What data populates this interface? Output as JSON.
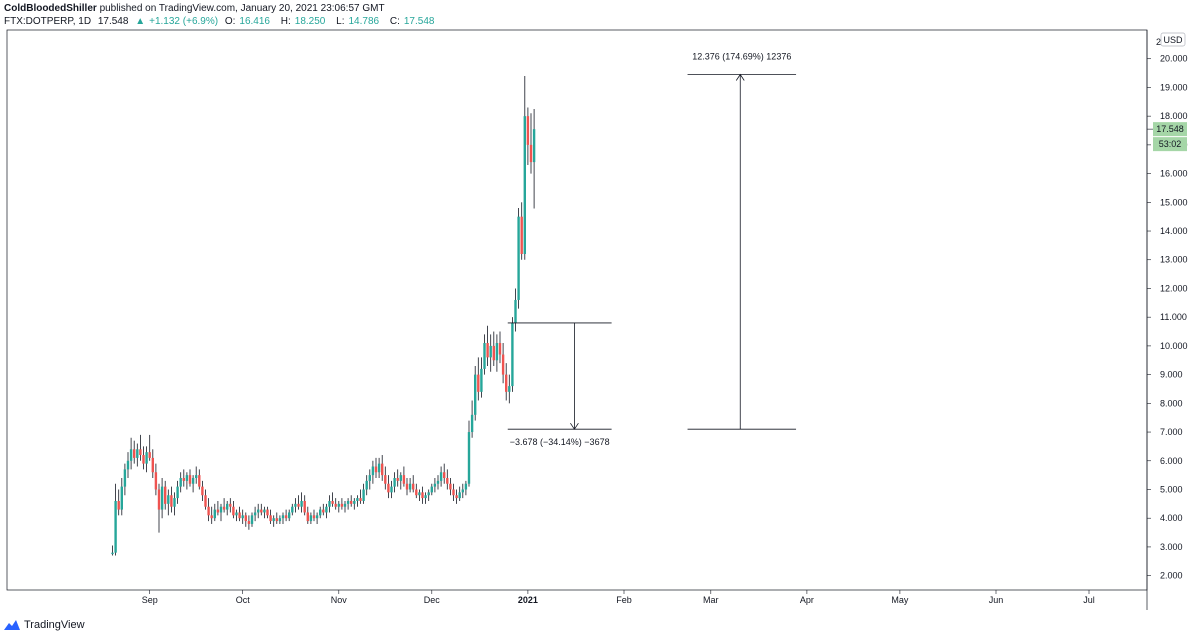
{
  "header": {
    "author": "ColdBloodedShiller",
    "published": "published on TradingView.com, January 20, 2021 23:06:57 GMT",
    "symbol": "FTX:DOTPERP, 1D",
    "last": "17.548",
    "change_arrow": "▲",
    "change": "+1.132 (+6.9%)",
    "o_label": "O:",
    "o_val": "16.416",
    "h_label": "H:",
    "h_val": "18.250",
    "l_label": "L:",
    "l_val": "14.786",
    "c_label": "C:",
    "c_val": "17.548"
  },
  "footer": {
    "brand": "TradingView",
    "logo_icon": "tradingview-logo-icon"
  },
  "chart_data": {
    "type": "candlestick",
    "currency_badge": "USD",
    "price_tag": "17.548",
    "countdown_tag": "53:02",
    "colors": {
      "up": "#26a69a",
      "down": "#ef5350",
      "line": "#131722",
      "tag": "#a5d6a7"
    },
    "y_ticks": [
      "20.000",
      "19.000",
      "18.000",
      "17.000",
      "16.000",
      "15.000",
      "14.000",
      "13.000",
      "12.000",
      "11.000",
      "10.000",
      "9.000",
      "8.000",
      "7.000",
      "6.000",
      "5.000",
      "4.000",
      "3.000",
      "2.000"
    ],
    "y_top_label": "2",
    "ylim": [
      1.5,
      21
    ],
    "x_ticks": [
      "Sep",
      "Oct",
      "Nov",
      "Dec",
      "2021",
      "Feb",
      "Mar",
      "Apr",
      "May",
      "Jun",
      "Jul"
    ],
    "x_tick_days": [
      12,
      42,
      73,
      103,
      134,
      165,
      193,
      224,
      254,
      285,
      315
    ],
    "candles": [
      {
        "d": 0,
        "o": 2.75,
        "h": 3.05,
        "l": 2.7,
        "c": 2.8
      },
      {
        "d": 1,
        "o": 2.8,
        "h": 5.2,
        "l": 2.7,
        "c": 4.6
      },
      {
        "d": 2,
        "o": 4.6,
        "h": 5.0,
        "l": 4.1,
        "c": 4.3
      },
      {
        "d": 3,
        "o": 4.3,
        "h": 5.4,
        "l": 4.1,
        "c": 5.1
      },
      {
        "d": 4,
        "o": 5.1,
        "h": 5.9,
        "l": 4.8,
        "c": 5.7
      },
      {
        "d": 5,
        "o": 5.7,
        "h": 6.3,
        "l": 5.4,
        "c": 6.0
      },
      {
        "d": 6,
        "o": 6.0,
        "h": 6.8,
        "l": 5.7,
        "c": 6.4
      },
      {
        "d": 7,
        "o": 6.4,
        "h": 6.7,
        "l": 5.9,
        "c": 6.1
      },
      {
        "d": 8,
        "o": 6.1,
        "h": 6.6,
        "l": 5.8,
        "c": 6.4
      },
      {
        "d": 9,
        "o": 6.4,
        "h": 6.9,
        "l": 6.0,
        "c": 6.2
      },
      {
        "d": 10,
        "o": 6.2,
        "h": 6.5,
        "l": 5.7,
        "c": 5.9
      },
      {
        "d": 11,
        "o": 5.9,
        "h": 6.5,
        "l": 5.6,
        "c": 6.3
      },
      {
        "d": 12,
        "o": 6.3,
        "h": 6.9,
        "l": 6.0,
        "c": 6.1
      },
      {
        "d": 13,
        "o": 6.1,
        "h": 6.4,
        "l": 5.4,
        "c": 5.6
      },
      {
        "d": 14,
        "o": 5.6,
        "h": 5.9,
        "l": 4.8,
        "c": 5.0
      },
      {
        "d": 15,
        "o": 5.0,
        "h": 5.2,
        "l": 3.5,
        "c": 4.3
      },
      {
        "d": 16,
        "o": 4.3,
        "h": 5.4,
        "l": 4.0,
        "c": 5.1
      },
      {
        "d": 17,
        "o": 5.1,
        "h": 5.3,
        "l": 4.3,
        "c": 4.5
      },
      {
        "d": 18,
        "o": 4.5,
        "h": 5.0,
        "l": 4.1,
        "c": 4.8
      },
      {
        "d": 19,
        "o": 4.8,
        "h": 5.1,
        "l": 4.2,
        "c": 4.4
      },
      {
        "d": 20,
        "o": 4.4,
        "h": 4.9,
        "l": 4.1,
        "c": 4.7
      },
      {
        "d": 21,
        "o": 4.7,
        "h": 5.3,
        "l": 4.5,
        "c": 5.1
      },
      {
        "d": 22,
        "o": 5.1,
        "h": 5.6,
        "l": 4.9,
        "c": 5.4
      },
      {
        "d": 23,
        "o": 5.4,
        "h": 5.7,
        "l": 5.1,
        "c": 5.3
      },
      {
        "d": 24,
        "o": 5.3,
        "h": 5.6,
        "l": 5.0,
        "c": 5.5
      },
      {
        "d": 25,
        "o": 5.5,
        "h": 5.7,
        "l": 5.1,
        "c": 5.2
      },
      {
        "d": 26,
        "o": 5.2,
        "h": 5.5,
        "l": 4.9,
        "c": 5.4
      },
      {
        "d": 27,
        "o": 5.4,
        "h": 5.8,
        "l": 5.2,
        "c": 5.5
      },
      {
        "d": 28,
        "o": 5.5,
        "h": 5.7,
        "l": 5.0,
        "c": 5.1
      },
      {
        "d": 29,
        "o": 5.1,
        "h": 5.3,
        "l": 4.6,
        "c": 4.8
      },
      {
        "d": 30,
        "o": 4.8,
        "h": 5.0,
        "l": 4.3,
        "c": 4.4
      },
      {
        "d": 31,
        "o": 4.4,
        "h": 4.7,
        "l": 3.9,
        "c": 4.1
      },
      {
        "d": 32,
        "o": 4.1,
        "h": 4.4,
        "l": 3.8,
        "c": 4.0
      },
      {
        "d": 33,
        "o": 4.0,
        "h": 4.5,
        "l": 3.9,
        "c": 4.3
      },
      {
        "d": 34,
        "o": 4.3,
        "h": 4.6,
        "l": 4.1,
        "c": 4.2
      },
      {
        "d": 35,
        "o": 4.2,
        "h": 4.5,
        "l": 3.9,
        "c": 4.4
      },
      {
        "d": 36,
        "o": 4.4,
        "h": 4.7,
        "l": 4.2,
        "c": 4.3
      },
      {
        "d": 37,
        "o": 4.3,
        "h": 4.6,
        "l": 4.1,
        "c": 4.5
      },
      {
        "d": 38,
        "o": 4.5,
        "h": 4.7,
        "l": 4.2,
        "c": 4.4
      },
      {
        "d": 39,
        "o": 4.4,
        "h": 4.6,
        "l": 4.0,
        "c": 4.1
      },
      {
        "d": 40,
        "o": 4.1,
        "h": 4.3,
        "l": 3.9,
        "c": 4.2
      },
      {
        "d": 41,
        "o": 4.2,
        "h": 4.4,
        "l": 3.9,
        "c": 4.0
      },
      {
        "d": 42,
        "o": 4.0,
        "h": 4.3,
        "l": 3.8,
        "c": 4.1
      },
      {
        "d": 43,
        "o": 4.1,
        "h": 4.2,
        "l": 3.7,
        "c": 3.9
      },
      {
        "d": 44,
        "o": 3.9,
        "h": 4.1,
        "l": 3.6,
        "c": 3.8
      },
      {
        "d": 45,
        "o": 3.8,
        "h": 4.2,
        "l": 3.7,
        "c": 4.1
      },
      {
        "d": 46,
        "o": 4.1,
        "h": 4.4,
        "l": 3.9,
        "c": 4.2
      },
      {
        "d": 47,
        "o": 4.2,
        "h": 4.5,
        "l": 4.0,
        "c": 4.3
      },
      {
        "d": 48,
        "o": 4.3,
        "h": 4.5,
        "l": 4.1,
        "c": 4.2
      },
      {
        "d": 49,
        "o": 4.2,
        "h": 4.4,
        "l": 4.0,
        "c": 4.3
      },
      {
        "d": 50,
        "o": 4.3,
        "h": 4.4,
        "l": 4.0,
        "c": 4.1
      },
      {
        "d": 51,
        "o": 4.1,
        "h": 4.3,
        "l": 3.8,
        "c": 3.9
      },
      {
        "d": 52,
        "o": 3.9,
        "h": 4.1,
        "l": 3.7,
        "c": 4.0
      },
      {
        "d": 53,
        "o": 4.0,
        "h": 4.2,
        "l": 3.8,
        "c": 3.9
      },
      {
        "d": 54,
        "o": 3.9,
        "h": 4.1,
        "l": 3.8,
        "c": 4.0
      },
      {
        "d": 55,
        "o": 4.0,
        "h": 4.2,
        "l": 3.8,
        "c": 4.1
      },
      {
        "d": 56,
        "o": 4.1,
        "h": 4.3,
        "l": 3.9,
        "c": 4.0
      },
      {
        "d": 57,
        "o": 4.0,
        "h": 4.3,
        "l": 3.9,
        "c": 4.2
      },
      {
        "d": 58,
        "o": 4.2,
        "h": 4.5,
        "l": 4.1,
        "c": 4.4
      },
      {
        "d": 59,
        "o": 4.4,
        "h": 4.7,
        "l": 4.2,
        "c": 4.5
      },
      {
        "d": 60,
        "o": 4.5,
        "h": 4.8,
        "l": 4.3,
        "c": 4.4
      },
      {
        "d": 61,
        "o": 4.4,
        "h": 4.9,
        "l": 4.2,
        "c": 4.6
      },
      {
        "d": 62,
        "o": 4.6,
        "h": 4.8,
        "l": 4.1,
        "c": 4.2
      },
      {
        "d": 63,
        "o": 4.2,
        "h": 4.4,
        "l": 3.8,
        "c": 3.9
      },
      {
        "d": 64,
        "o": 3.9,
        "h": 4.2,
        "l": 3.8,
        "c": 4.1
      },
      {
        "d": 65,
        "o": 4.1,
        "h": 4.3,
        "l": 3.9,
        "c": 4.0
      },
      {
        "d": 66,
        "o": 4.0,
        "h": 4.2,
        "l": 3.8,
        "c": 4.1
      },
      {
        "d": 67,
        "o": 4.1,
        "h": 4.4,
        "l": 4.0,
        "c": 4.3
      },
      {
        "d": 68,
        "o": 4.3,
        "h": 4.5,
        "l": 4.1,
        "c": 4.2
      },
      {
        "d": 69,
        "o": 4.2,
        "h": 4.5,
        "l": 4.0,
        "c": 4.4
      },
      {
        "d": 70,
        "o": 4.4,
        "h": 4.8,
        "l": 4.2,
        "c": 4.6
      },
      {
        "d": 71,
        "o": 4.6,
        "h": 4.9,
        "l": 4.4,
        "c": 4.5
      },
      {
        "d": 72,
        "o": 4.5,
        "h": 4.7,
        "l": 4.3,
        "c": 4.4
      },
      {
        "d": 73,
        "o": 4.4,
        "h": 4.6,
        "l": 4.2,
        "c": 4.5
      },
      {
        "d": 74,
        "o": 4.5,
        "h": 4.7,
        "l": 4.3,
        "c": 4.4
      },
      {
        "d": 75,
        "o": 4.4,
        "h": 4.6,
        "l": 4.2,
        "c": 4.5
      },
      {
        "d": 76,
        "o": 4.5,
        "h": 4.7,
        "l": 4.3,
        "c": 4.6
      },
      {
        "d": 77,
        "o": 4.6,
        "h": 4.8,
        "l": 4.4,
        "c": 4.5
      },
      {
        "d": 78,
        "o": 4.5,
        "h": 4.7,
        "l": 4.3,
        "c": 4.6
      },
      {
        "d": 79,
        "o": 4.6,
        "h": 4.8,
        "l": 4.4,
        "c": 4.7
      },
      {
        "d": 80,
        "o": 4.7,
        "h": 5.0,
        "l": 4.5,
        "c": 4.6
      },
      {
        "d": 81,
        "o": 4.6,
        "h": 5.2,
        "l": 4.5,
        "c": 5.0
      },
      {
        "d": 82,
        "o": 5.0,
        "h": 5.5,
        "l": 4.8,
        "c": 5.3
      },
      {
        "d": 83,
        "o": 5.3,
        "h": 5.7,
        "l": 5.0,
        "c": 5.5
      },
      {
        "d": 84,
        "o": 5.5,
        "h": 6.0,
        "l": 5.2,
        "c": 5.8
      },
      {
        "d": 85,
        "o": 5.8,
        "h": 6.1,
        "l": 5.4,
        "c": 5.6
      },
      {
        "d": 86,
        "o": 5.6,
        "h": 6.1,
        "l": 5.4,
        "c": 5.9
      },
      {
        "d": 87,
        "o": 5.9,
        "h": 6.2,
        "l": 5.3,
        "c": 5.5
      },
      {
        "d": 88,
        "o": 5.5,
        "h": 5.8,
        "l": 5.0,
        "c": 5.2
      },
      {
        "d": 89,
        "o": 5.2,
        "h": 5.5,
        "l": 4.7,
        "c": 4.9
      },
      {
        "d": 90,
        "o": 4.9,
        "h": 5.3,
        "l": 4.7,
        "c": 5.1
      },
      {
        "d": 91,
        "o": 5.1,
        "h": 5.6,
        "l": 4.9,
        "c": 5.4
      },
      {
        "d": 92,
        "o": 5.4,
        "h": 5.7,
        "l": 5.1,
        "c": 5.3
      },
      {
        "d": 93,
        "o": 5.3,
        "h": 5.6,
        "l": 5.0,
        "c": 5.5
      },
      {
        "d": 94,
        "o": 5.5,
        "h": 5.8,
        "l": 5.1,
        "c": 5.2
      },
      {
        "d": 95,
        "o": 5.2,
        "h": 5.4,
        "l": 4.8,
        "c": 5.0
      },
      {
        "d": 96,
        "o": 5.0,
        "h": 5.4,
        "l": 4.9,
        "c": 5.2
      },
      {
        "d": 97,
        "o": 5.2,
        "h": 5.5,
        "l": 4.9,
        "c": 5.0
      },
      {
        "d": 98,
        "o": 5.0,
        "h": 5.2,
        "l": 4.7,
        "c": 4.8
      },
      {
        "d": 99,
        "o": 4.8,
        "h": 5.0,
        "l": 4.6,
        "c": 4.9
      },
      {
        "d": 100,
        "o": 4.9,
        "h": 5.1,
        "l": 4.5,
        "c": 4.7
      },
      {
        "d": 101,
        "o": 4.7,
        "h": 4.9,
        "l": 4.5,
        "c": 4.8
      },
      {
        "d": 102,
        "o": 4.8,
        "h": 5.0,
        "l": 4.6,
        "c": 4.9
      },
      {
        "d": 103,
        "o": 4.9,
        "h": 5.2,
        "l": 4.8,
        "c": 5.1
      },
      {
        "d": 104,
        "o": 5.1,
        "h": 5.4,
        "l": 4.9,
        "c": 5.2
      },
      {
        "d": 105,
        "o": 5.2,
        "h": 5.5,
        "l": 5.0,
        "c": 5.3
      },
      {
        "d": 106,
        "o": 5.3,
        "h": 5.8,
        "l": 5.1,
        "c": 5.6
      },
      {
        "d": 107,
        "o": 5.6,
        "h": 5.9,
        "l": 5.2,
        "c": 5.4
      },
      {
        "d": 108,
        "o": 5.4,
        "h": 5.7,
        "l": 5.0,
        "c": 5.2
      },
      {
        "d": 109,
        "o": 5.2,
        "h": 5.4,
        "l": 4.8,
        "c": 5.0
      },
      {
        "d": 110,
        "o": 5.0,
        "h": 5.2,
        "l": 4.6,
        "c": 4.8
      },
      {
        "d": 111,
        "o": 4.8,
        "h": 5.0,
        "l": 4.5,
        "c": 4.7
      },
      {
        "d": 112,
        "o": 4.7,
        "h": 5.1,
        "l": 4.6,
        "c": 4.9
      },
      {
        "d": 113,
        "o": 4.9,
        "h": 5.2,
        "l": 4.7,
        "c": 5.0
      },
      {
        "d": 114,
        "o": 5.0,
        "h": 5.3,
        "l": 4.8,
        "c": 5.2
      },
      {
        "d": 115,
        "o": 5.2,
        "h": 7.4,
        "l": 5.1,
        "c": 7.0
      },
      {
        "d": 116,
        "o": 7.0,
        "h": 8.1,
        "l": 6.8,
        "c": 7.6
      },
      {
        "d": 117,
        "o": 7.6,
        "h": 9.3,
        "l": 7.4,
        "c": 9.0
      },
      {
        "d": 118,
        "o": 9.0,
        "h": 9.6,
        "l": 8.1,
        "c": 8.4
      },
      {
        "d": 119,
        "o": 8.4,
        "h": 9.6,
        "l": 8.2,
        "c": 9.2
      },
      {
        "d": 120,
        "o": 9.2,
        "h": 10.4,
        "l": 9.0,
        "c": 10.1
      },
      {
        "d": 121,
        "o": 10.1,
        "h": 10.7,
        "l": 9.3,
        "c": 9.6
      },
      {
        "d": 122,
        "o": 9.6,
        "h": 10.4,
        "l": 9.1,
        "c": 10.0
      },
      {
        "d": 123,
        "o": 10.0,
        "h": 10.5,
        "l": 9.3,
        "c": 9.5
      },
      {
        "d": 124,
        "o": 9.5,
        "h": 10.4,
        "l": 9.1,
        "c": 10.1
      },
      {
        "d": 125,
        "o": 10.1,
        "h": 10.5,
        "l": 9.4,
        "c": 9.7
      },
      {
        "d": 126,
        "o": 9.7,
        "h": 10.1,
        "l": 8.7,
        "c": 9.0
      },
      {
        "d": 127,
        "o": 9.0,
        "h": 9.4,
        "l": 8.1,
        "c": 8.4
      },
      {
        "d": 128,
        "o": 8.4,
        "h": 9.0,
        "l": 8.0,
        "c": 8.6
      },
      {
        "d": 129,
        "o": 8.6,
        "h": 11.0,
        "l": 8.4,
        "c": 10.8
      },
      {
        "d": 130,
        "o": 10.8,
        "h": 12.0,
        "l": 10.5,
        "c": 11.6
      },
      {
        "d": 131,
        "o": 11.6,
        "h": 14.8,
        "l": 11.3,
        "c": 14.5
      },
      {
        "d": 132,
        "o": 14.5,
        "h": 15.0,
        "l": 13.0,
        "c": 13.2
      },
      {
        "d": 133,
        "o": 13.2,
        "h": 19.4,
        "l": 13.0,
        "c": 18.0
      },
      {
        "d": 134,
        "o": 18.0,
        "h": 18.3,
        "l": 16.3,
        "c": 17.0
      },
      {
        "d": 135,
        "o": 17.0,
        "h": 18.1,
        "l": 16.0,
        "c": 16.4
      },
      {
        "d": 136,
        "o": 16.4,
        "h": 18.25,
        "l": 14.786,
        "c": 17.548
      }
    ],
    "annotations": [
      {
        "kind": "range-down",
        "text": "−3.678 (−34.14%) −3678",
        "from": 10.8,
        "to": 7.1
      },
      {
        "kind": "range-up",
        "text": "12.376 (174.69%) 12376",
        "from": 7.1,
        "to": 19.45
      }
    ]
  }
}
